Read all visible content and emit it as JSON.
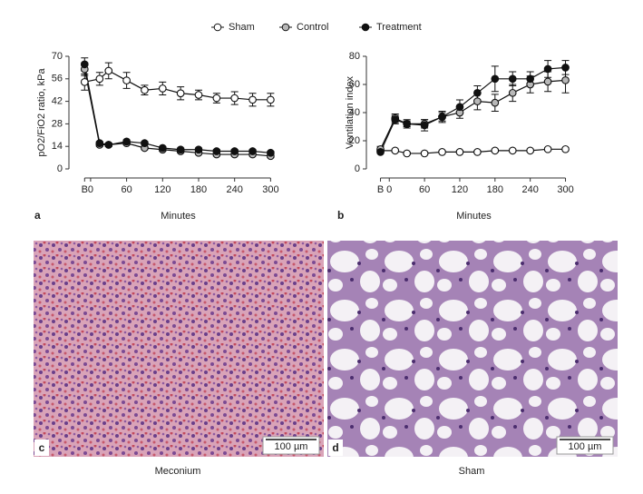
{
  "chart_data": [
    {
      "type": "line",
      "panel": "a",
      "ylabel": "pO2/FiO2 ratio, kPa",
      "xlabel": "Minutes",
      "x": [
        -10,
        15,
        30,
        60,
        90,
        120,
        150,
        180,
        210,
        240,
        270,
        300
      ],
      "xlim": [
        -18,
        310
      ],
      "xticks": [
        {
          "value": -10,
          "label": "B"
        },
        0,
        60,
        120,
        180,
        240,
        300
      ],
      "ylim": [
        0,
        70
      ],
      "yticks": [
        0,
        14,
        28,
        42,
        56,
        70
      ],
      "series": [
        {
          "name": "Sham",
          "color": "#ffffff",
          "values": [
            54,
            56,
            61,
            55,
            49,
            50,
            47,
            46,
            44,
            44,
            43,
            43
          ],
          "errors": [
            5,
            4,
            5,
            5,
            3,
            4,
            4,
            3,
            3,
            4,
            4,
            4
          ]
        },
        {
          "name": "Control",
          "color": "#b8b8b8",
          "values": [
            62,
            15,
            15,
            16,
            13,
            12,
            11,
            10,
            9,
            9,
            9,
            8
          ],
          "errors": [
            4,
            1,
            1,
            1,
            1,
            1,
            1,
            1,
            1,
            1,
            1,
            1
          ]
        },
        {
          "name": "Treatment",
          "color": "#111111",
          "values": [
            65,
            16,
            15,
            17,
            16,
            13,
            12,
            12,
            11,
            11,
            11,
            10
          ],
          "errors": [
            4,
            1,
            1,
            1,
            1,
            1,
            1,
            1,
            1,
            1,
            1,
            1
          ]
        }
      ]
    },
    {
      "type": "line",
      "panel": "b",
      "ylabel": "Ventilation index",
      "xlabel": "Minutes",
      "x": [
        -15,
        10,
        30,
        60,
        90,
        120,
        150,
        180,
        210,
        240,
        270,
        300
      ],
      "xlim": [
        -22,
        310
      ],
      "xticks": [
        {
          "value": -15,
          "label": "B"
        },
        0,
        60,
        120,
        180,
        240,
        300
      ],
      "ylim": [
        0,
        80
      ],
      "yticks": [
        0,
        20,
        40,
        60,
        80
      ],
      "series": [
        {
          "color": "#ffffff",
          "values": [
            13,
            13,
            11,
            11,
            12,
            12,
            12,
            13,
            13,
            13,
            14,
            14
          ],
          "errors": [
            1,
            1,
            1,
            1,
            1,
            1,
            1,
            1,
            1,
            1,
            1,
            1
          ]
        },
        {
          "color": "#b8b8b8",
          "values": [
            14,
            36,
            32,
            32,
            37,
            40,
            48,
            47,
            54,
            60,
            62,
            63
          ],
          "errors": [
            2,
            3,
            3,
            3,
            4,
            4,
            6,
            6,
            6,
            6,
            7,
            9
          ]
        },
        {
          "color": "#111111",
          "values": [
            12,
            35,
            32,
            31,
            37,
            44,
            54,
            64,
            64,
            64,
            71,
            72
          ],
          "errors": [
            1,
            3,
            2,
            4,
            3,
            5,
            5,
            9,
            5,
            5,
            6,
            5
          ]
        }
      ]
    }
  ],
  "images": [
    {
      "panel": "c",
      "scale": "100 µm",
      "caption": "Meconium"
    },
    {
      "panel": "d",
      "scale": "100 µm",
      "caption": "Sham"
    }
  ]
}
